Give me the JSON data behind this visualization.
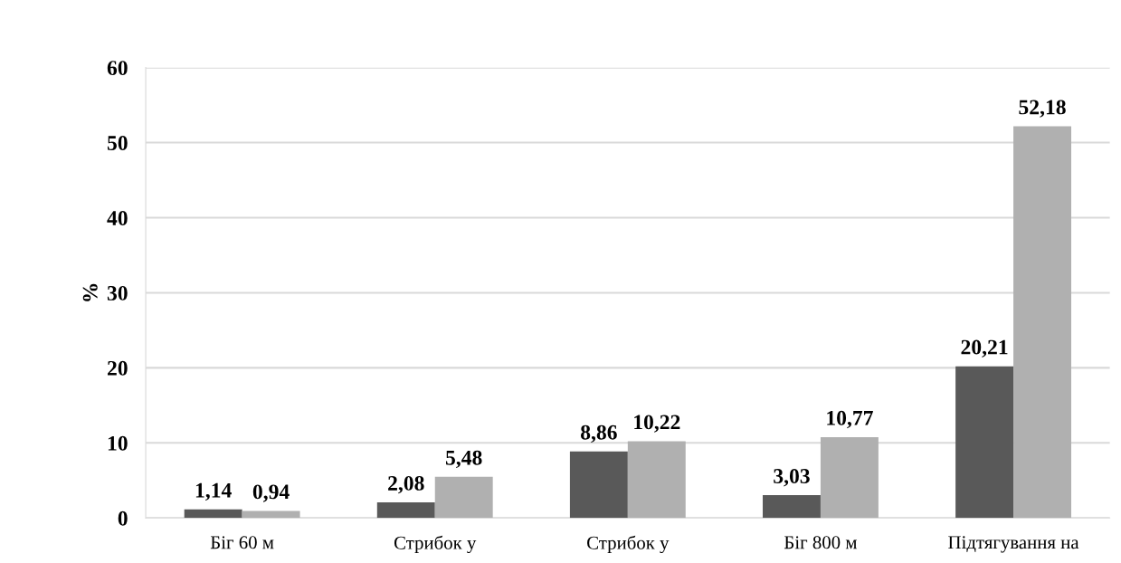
{
  "chart_data": {
    "type": "bar",
    "ylabel": "%",
    "categories": [
      "Біг 60 м",
      "Стрибок у",
      "Стрибок у",
      "Біг 800 м",
      "Підтягування на"
    ],
    "series": [
      {
        "color": "#595959",
        "values": [
          1.14,
          2.08,
          8.86,
          3.03,
          20.21
        ],
        "value_labels": [
          "1,14",
          "2,08",
          "8,86",
          "3,03",
          "20,21"
        ]
      },
      {
        "color": "#b0b0b0",
        "values": [
          0.94,
          5.48,
          10.22,
          10.77,
          52.18
        ],
        "value_labels": [
          "0,94",
          "5,48",
          "10,22",
          "10,77",
          "52,18"
        ]
      }
    ],
    "ylim": [
      0,
      60
    ],
    "yticks": [
      0,
      10,
      20,
      30,
      40,
      50,
      60
    ],
    "grid": "y",
    "legend": false
  }
}
